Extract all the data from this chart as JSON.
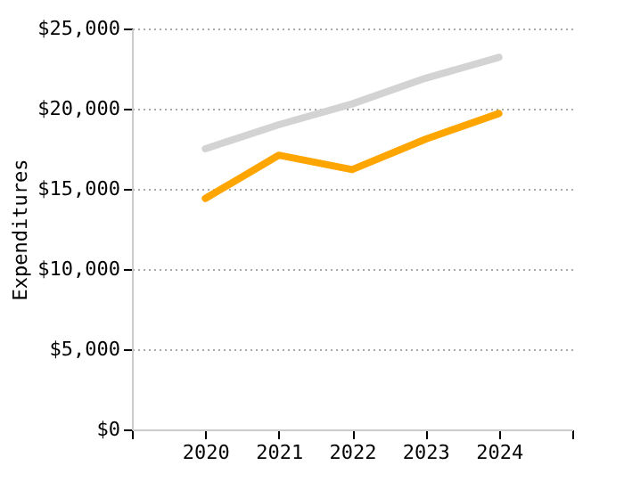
{
  "chart_data": {
    "type": "line",
    "ylabel": "Expenditures",
    "x": [
      2020,
      2021,
      2022,
      2023,
      2024
    ],
    "series": [
      {
        "color": "#d3d3d3",
        "values": [
          17500,
          19000,
          20300,
          21900,
          23200
        ]
      },
      {
        "color": "#ffa500",
        "values": [
          14400,
          17100,
          16200,
          18100,
          19700
        ]
      }
    ],
    "xlim": [
      2019,
      2025
    ],
    "xticks": [
      {
        "value": 2019,
        "label": null
      },
      2020,
      2021,
      2022,
      2023,
      2024,
      {
        "value": 2025,
        "label": null
      }
    ],
    "ylim": [
      0,
      25000
    ],
    "yticks": [
      {
        "value": 0,
        "label": "$0"
      },
      {
        "value": 5000,
        "label": "$5,000"
      },
      {
        "value": 10000,
        "label": "$10,000"
      },
      {
        "value": 15000,
        "label": "$15,000"
      },
      {
        "value": 20000,
        "label": "$20,000"
      },
      {
        "value": 25000,
        "label": "$25,000"
      }
    ],
    "grid": "y",
    "legend": false,
    "marker": "none",
    "line_style": "solid"
  }
}
